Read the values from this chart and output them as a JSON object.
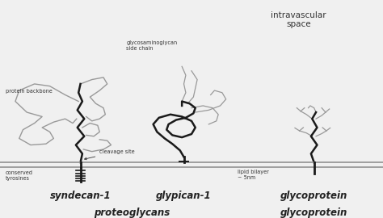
{
  "bg_color": "#f0f0f0",
  "dark": "#1a1a1a",
  "gray": "#999999",
  "font_size_label": 8.5,
  "font_size_small": 5.0,
  "font_size_title": 7.5,
  "xlim": [
    0,
    10
  ],
  "ylim": [
    0,
    10
  ],
  "membrane_y1": 2.55,
  "membrane_y2": 2.35,
  "label_intravascular": "intravascular\nspace",
  "label_syndecan": "syndecan-1",
  "label_glypican": "glypican-1",
  "label_glycoprotein": "glycoprotein",
  "label_proteoglycans": "proteoglycans",
  "label_lipid_bilayer": "lipid bilayer\n~ 5nm",
  "label_cleavage": "cleavage site",
  "label_conserved": "conserved\ntyrosines",
  "label_protein_backbone": "protein backbone",
  "label_gag": "glycosaminoglycan\nside chain"
}
